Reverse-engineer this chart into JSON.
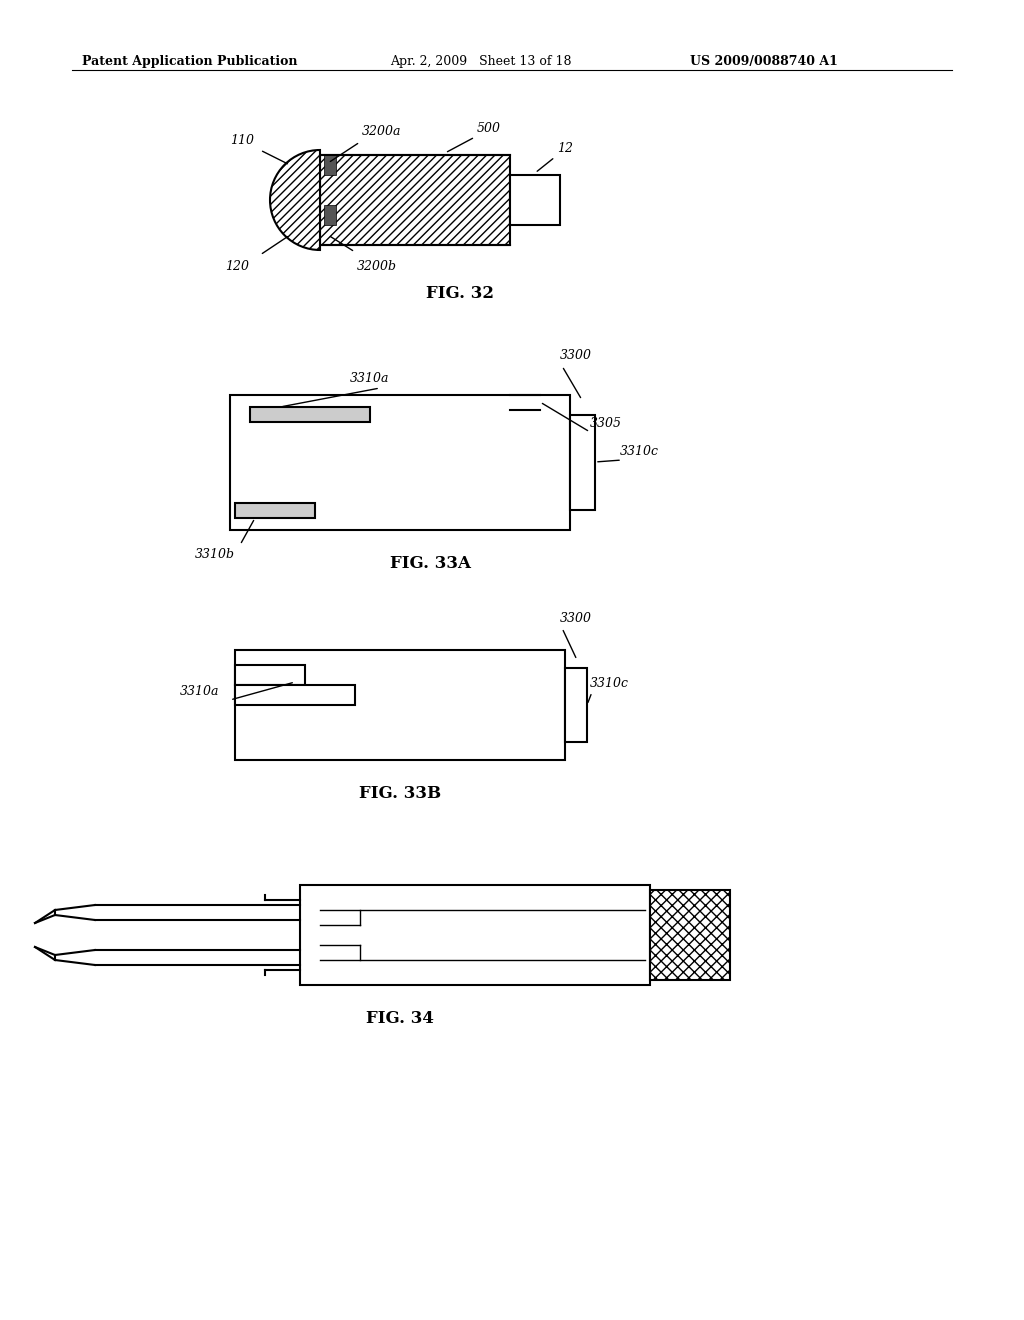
{
  "bg_color": "#ffffff",
  "header_left": "Patent Application Publication",
  "header_mid": "Apr. 2, 2009   Sheet 13 of 18",
  "header_right": "US 2009/0088740 A1",
  "fig32_caption": "FIG. 32",
  "fig33a_caption": "FIG. 33A",
  "fig33b_caption": "FIG. 33B",
  "fig34_caption": "FIG. 34"
}
